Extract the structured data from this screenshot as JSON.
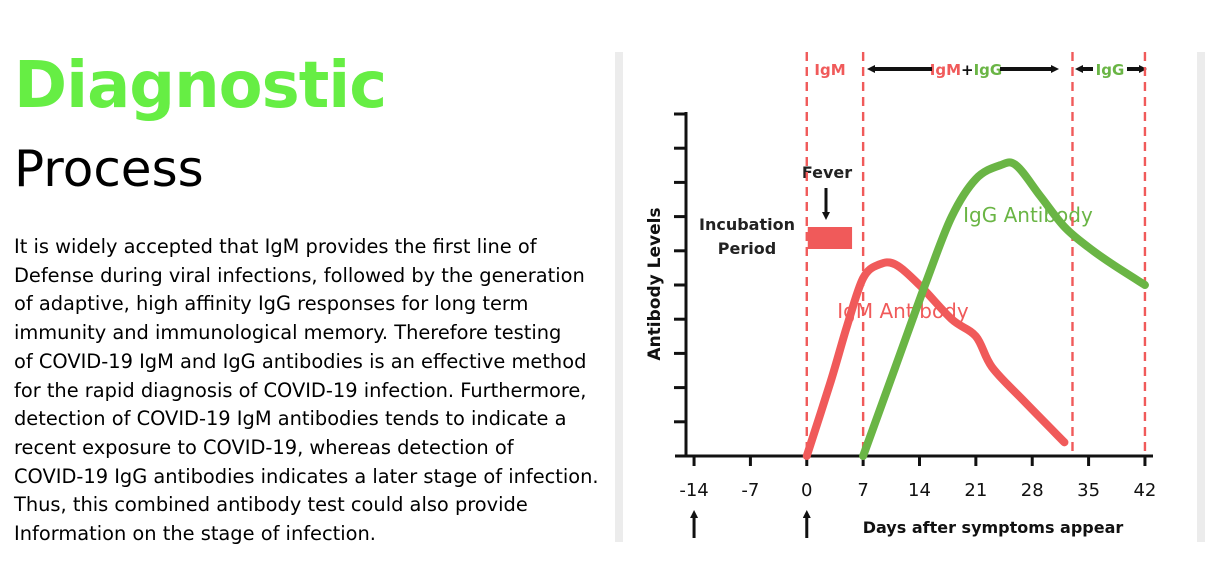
{
  "slide": {
    "title": "Diagnostic",
    "subtitle": "Process",
    "title_color": "#66ee44",
    "body_lines": [
      "It is widely accepted that IgM provides the first line of",
      "Defense during viral infections, followed by the generation",
      "of adaptive, high affinity IgG responses for long term",
      "immunity and immunological memory. Therefore testing",
      "of COVID-19 IgM and IgG antibodies is an effective method",
      "for the rapid diagnosis of COVID-19 infection. Furthermore,",
      "detection of COVID-19 IgM antibodies tends to indicate a",
      "recent exposure to COVID-19, whereas detection of",
      "COVID-19 IgG antibodies indicates a later stage of infection.",
      "Thus, this combined antibody test could also provide",
      "Information on the stage of infection."
    ]
  },
  "chart_data": {
    "type": "line",
    "title": "",
    "xlabel": "Days after symptoms appear",
    "ylabel": "Antibody Levels",
    "xlim": [
      -15,
      43
    ],
    "ylim": [
      0,
      10
    ],
    "x_ticks": [
      -14,
      -7,
      0,
      7,
      14,
      21,
      28,
      35,
      42
    ],
    "y_tick_count": 10,
    "grid": false,
    "series": [
      {
        "name": "IgM Antibody",
        "color": "#f05a5a",
        "points": [
          [
            0,
            0
          ],
          [
            3,
            2.2
          ],
          [
            5,
            3.8
          ],
          [
            7,
            5.2
          ],
          [
            9,
            5.6
          ],
          [
            11,
            5.6
          ],
          [
            14,
            5.0
          ],
          [
            18,
            4.0
          ],
          [
            21,
            3.5
          ],
          [
            23,
            2.6
          ],
          [
            27,
            1.6
          ],
          [
            32,
            0.4
          ]
        ]
      },
      {
        "name": "IgG Antibody",
        "color": "#6ab545",
        "points": [
          [
            7,
            0
          ],
          [
            11,
            2.6
          ],
          [
            15,
            5.2
          ],
          [
            18,
            7.0
          ],
          [
            21,
            8.1
          ],
          [
            24,
            8.5
          ],
          [
            26,
            8.5
          ],
          [
            29,
            7.6
          ],
          [
            32,
            6.7
          ],
          [
            35,
            6.1
          ],
          [
            38,
            5.6
          ],
          [
            42,
            5.0
          ]
        ]
      }
    ],
    "phase_lines": [
      0,
      7,
      33,
      42
    ],
    "phases": [
      {
        "label": "IgM",
        "from": 0,
        "to": 7
      },
      {
        "label_a": "IgM",
        "label_plus": "+",
        "label_b": "IgG",
        "from": 7,
        "to": 33
      },
      {
        "label": "IgG",
        "from": 33,
        "to": 42
      }
    ],
    "annotations": {
      "incubation_line1": "Incubation",
      "incubation_line2": "Period",
      "fever": "Fever",
      "fever_from": 0,
      "fever_to": 5.5
    },
    "arrow_markers": [
      -14,
      0
    ],
    "colors": {
      "igm": "#f05a5a",
      "igg": "#6ab545",
      "axis": "#111111"
    }
  }
}
